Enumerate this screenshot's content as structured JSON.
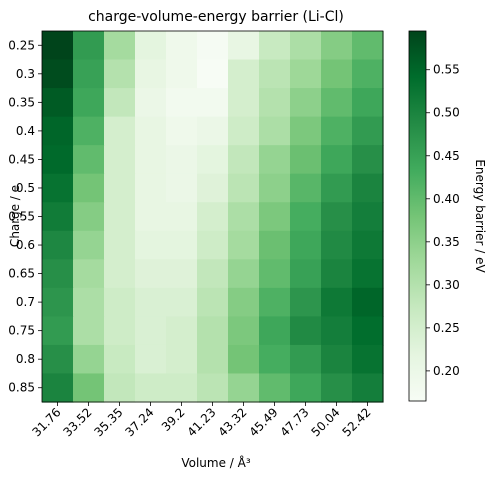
{
  "chart_data": {
    "type": "heatmap",
    "title": "charge-volume-energy barrier (Li-Cl)",
    "xlabel": "Volume / Å³",
    "ylabel": "Charge / e",
    "x_categories": [
      "31.76",
      "33.52",
      "35.35",
      "37.24",
      "39.2",
      "41.23",
      "43.32",
      "45.49",
      "47.73",
      "50.04",
      "52.42"
    ],
    "y_categories": [
      "0.25",
      "0.3",
      "0.35",
      "0.4",
      "0.45",
      "0.5",
      "0.55",
      "0.6",
      "0.65",
      "0.7",
      "0.75",
      "0.8",
      "0.85"
    ],
    "values": [
      [
        0.595,
        0.46,
        0.32,
        0.22,
        0.19,
        0.17,
        0.21,
        0.27,
        0.31,
        0.36,
        0.4
      ],
      [
        0.585,
        0.45,
        0.3,
        0.21,
        0.19,
        0.165,
        0.25,
        0.29,
        0.33,
        0.38,
        0.42
      ],
      [
        0.565,
        0.44,
        0.28,
        0.2,
        0.18,
        0.18,
        0.25,
        0.3,
        0.35,
        0.4,
        0.44
      ],
      [
        0.55,
        0.42,
        0.25,
        0.21,
        0.19,
        0.2,
        0.26,
        0.31,
        0.37,
        0.42,
        0.46
      ],
      [
        0.545,
        0.4,
        0.25,
        0.21,
        0.2,
        0.22,
        0.28,
        0.34,
        0.39,
        0.44,
        0.48
      ],
      [
        0.53,
        0.38,
        0.25,
        0.21,
        0.2,
        0.23,
        0.29,
        0.35,
        0.41,
        0.46,
        0.5
      ],
      [
        0.515,
        0.36,
        0.25,
        0.21,
        0.21,
        0.25,
        0.31,
        0.37,
        0.43,
        0.48,
        0.51
      ],
      [
        0.495,
        0.34,
        0.25,
        0.22,
        0.22,
        0.26,
        0.32,
        0.39,
        0.44,
        0.49,
        0.52
      ],
      [
        0.48,
        0.32,
        0.25,
        0.23,
        0.23,
        0.28,
        0.34,
        0.4,
        0.45,
        0.5,
        0.53
      ],
      [
        0.47,
        0.31,
        0.26,
        0.24,
        0.24,
        0.29,
        0.36,
        0.42,
        0.47,
        0.52,
        0.55
      ],
      [
        0.46,
        0.31,
        0.26,
        0.24,
        0.25,
        0.3,
        0.37,
        0.44,
        0.49,
        0.51,
        0.54
      ],
      [
        0.48,
        0.34,
        0.27,
        0.24,
        0.25,
        0.3,
        0.38,
        0.43,
        0.46,
        0.5,
        0.53
      ],
      [
        0.5,
        0.38,
        0.28,
        0.26,
        0.26,
        0.29,
        0.34,
        0.4,
        0.44,
        0.48,
        0.51
      ]
    ],
    "colorbar": {
      "label": "Energy barrier / eV",
      "min": 0.165,
      "max": 0.595,
      "ticks": [
        0.2,
        0.25,
        0.3,
        0.35,
        0.4,
        0.45,
        0.5,
        0.55
      ],
      "tick_labels": [
        "0.20",
        "0.25",
        "0.30",
        "0.35",
        "0.40",
        "0.45",
        "0.50",
        "0.55"
      ],
      "colormap": "Greens",
      "stops": [
        "#f7fcf5",
        "#e5f5e0",
        "#c7e9c0",
        "#a1d99b",
        "#74c476",
        "#41ab5d",
        "#238b45",
        "#006d2c",
        "#00441b"
      ]
    },
    "grid": false
  }
}
